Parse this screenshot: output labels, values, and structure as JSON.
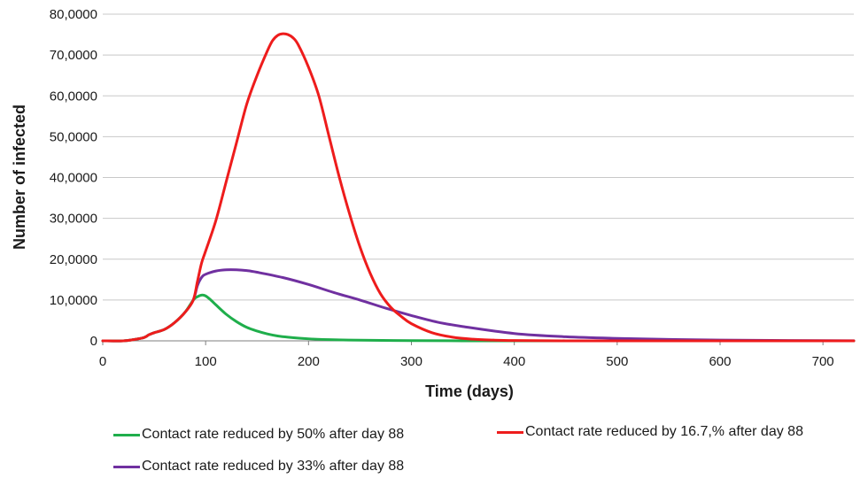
{
  "chart_data": {
    "type": "line",
    "title": "",
    "xlabel": "Time (days)",
    "ylabel": "Number of infected",
    "xlim": [
      0,
      730
    ],
    "ylim": [
      0,
      800000
    ],
    "xticks": [
      0,
      100,
      200,
      300,
      400,
      500,
      600,
      700
    ],
    "yticks": [
      0,
      100000,
      200000,
      300000,
      400000,
      500000,
      600000,
      700000,
      800000
    ],
    "ytick_labels": [
      "0",
      "10,0000",
      "20,0000",
      "30,0000",
      "40,0000",
      "50,0000",
      "60,0000",
      "70,0000",
      "80,0000"
    ],
    "grid": true,
    "series": [
      {
        "name": "Contact rate reduced by 50% after day 88",
        "color": "#1fae4b",
        "x": [
          0,
          20,
          30,
          40,
          45,
          50,
          60,
          70,
          80,
          88,
          92,
          96,
          100,
          105,
          110,
          120,
          130,
          140,
          150,
          160,
          170,
          180,
          200,
          220,
          250,
          300,
          350,
          400,
          730
        ],
        "y": [
          0,
          0,
          3000,
          8000,
          15000,
          20000,
          28000,
          45000,
          70000,
          100000,
          108000,
          112000,
          110000,
          100000,
          88000,
          65000,
          47000,
          33000,
          24000,
          17000,
          12000,
          9000,
          5000,
          3000,
          1500,
          500,
          100,
          0,
          0
        ]
      },
      {
        "name": "Contact rate reduced by 33% after day 88",
        "color": "#7030a0",
        "x": [
          0,
          20,
          30,
          40,
          45,
          50,
          60,
          70,
          80,
          88,
          92,
          96,
          100,
          110,
          120,
          130,
          140,
          150,
          175,
          200,
          225,
          250,
          275,
          300,
          325,
          350,
          400,
          450,
          500,
          550,
          600,
          650,
          700,
          730
        ],
        "y": [
          0,
          0,
          3000,
          8000,
          15000,
          20000,
          28000,
          45000,
          70000,
          100000,
          135000,
          155000,
          163000,
          171000,
          174000,
          174000,
          172000,
          168000,
          155000,
          138000,
          118000,
          100000,
          80000,
          62000,
          46000,
          35000,
          18000,
          10000,
          6000,
          3500,
          2000,
          1000,
          500,
          300
        ]
      },
      {
        "name": "Contact rate reduced by 16.7,% after day 88",
        "color": "#ee1c1c",
        "x": [
          0,
          20,
          30,
          40,
          45,
          50,
          60,
          70,
          80,
          88,
          92,
          96,
          100,
          110,
          120,
          130,
          140,
          150,
          160,
          165,
          170,
          175,
          180,
          185,
          190,
          200,
          210,
          220,
          230,
          240,
          250,
          260,
          270,
          280,
          290,
          300,
          320,
          340,
          360,
          380,
          400,
          450,
          500,
          730
        ],
        "y": [
          0,
          0,
          3000,
          8000,
          15000,
          20000,
          28000,
          45000,
          70000,
          100000,
          145000,
          190000,
          220000,
          295000,
          390000,
          485000,
          580000,
          650000,
          710000,
          735000,
          748000,
          752000,
          750000,
          742000,
          725000,
          670000,
          600000,
          500000,
          400000,
          310000,
          230000,
          165000,
          115000,
          82000,
          60000,
          42000,
          20000,
          9000,
          4000,
          1800,
          800,
          100,
          0,
          0
        ]
      }
    ]
  }
}
